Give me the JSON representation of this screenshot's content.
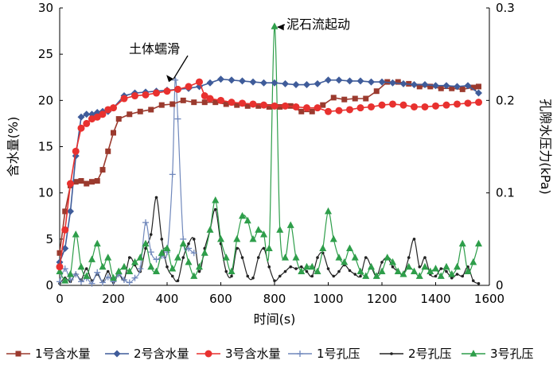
{
  "chart_data": {
    "type": "line",
    "xlabel": "时间(s)",
    "ylabel_left": "含水量(%)",
    "ylabel_right": "孔隙水压力(kPa)",
    "xlim": [
      0,
      1600
    ],
    "ylim_left": [
      0,
      30
    ],
    "ylim_right": [
      0,
      0.3
    ],
    "xticks": [
      0,
      200,
      400,
      600,
      800,
      1000,
      1200,
      1400,
      1600
    ],
    "yticks_left": [
      0,
      5,
      10,
      15,
      20,
      25,
      30
    ],
    "yticks_right": [
      0,
      0.1,
      0.2,
      0.3
    ],
    "ytick_labels_right": [
      "0",
      "0.1",
      "0.2",
      "0.3"
    ],
    "annotations": [
      {
        "text": "土体蠕滑",
        "x": 430,
        "y": 22.5
      },
      {
        "text": "泥石流起动",
        "x": 805,
        "y": 28
      }
    ],
    "legend_position": "bottom",
    "series": [
      {
        "name": "1号含水量",
        "axis": "left",
        "color": "#9b3a2e",
        "marker": "square",
        "x": [
          0,
          20,
          40,
          60,
          80,
          100,
          120,
          140,
          160,
          180,
          200,
          220,
          260,
          300,
          340,
          380,
          420,
          460,
          500,
          540,
          580,
          620,
          660,
          700,
          740,
          780,
          820,
          860,
          900,
          940,
          980,
          1020,
          1060,
          1100,
          1140,
          1180,
          1220,
          1260,
          1300,
          1340,
          1380,
          1420,
          1460,
          1500,
          1540,
          1560
        ],
        "y": [
          3.5,
          8,
          10.8,
          11.2,
          11.3,
          11.0,
          11.2,
          11.3,
          12.5,
          14.5,
          16.5,
          18,
          18.5,
          18.8,
          19,
          19.5,
          19.6,
          20,
          19.8,
          19.8,
          19.8,
          19.6,
          19.5,
          19.4,
          19.4,
          19.3,
          19.3,
          19.4,
          18.8,
          18.8,
          19.5,
          20.3,
          20.1,
          20.2,
          20.2,
          21.0,
          22.0,
          22.0,
          21.8,
          21.5,
          21.5,
          21.3,
          21.3,
          21.2,
          21.4,
          21.5
        ]
      },
      {
        "name": "2号含水量",
        "axis": "left",
        "color": "#3f5c9a",
        "marker": "diamond",
        "x": [
          0,
          20,
          40,
          60,
          80,
          100,
          120,
          140,
          160,
          180,
          200,
          240,
          280,
          320,
          360,
          400,
          440,
          480,
          520,
          560,
          600,
          640,
          680,
          720,
          760,
          800,
          840,
          880,
          920,
          960,
          1000,
          1040,
          1080,
          1120,
          1160,
          1200,
          1240,
          1280,
          1320,
          1360,
          1400,
          1440,
          1480,
          1520,
          1560
        ],
        "y": [
          2.5,
          4,
          8,
          14,
          18.2,
          18.5,
          18.5,
          18.7,
          18.8,
          18.8,
          19.2,
          20.5,
          20.8,
          20.9,
          21.0,
          21.1,
          21.2,
          21.3,
          21.5,
          21.9,
          22.3,
          22.2,
          22.1,
          22,
          21.9,
          21.9,
          21.8,
          21.7,
          21.7,
          21.8,
          22.2,
          22.2,
          22.1,
          22.1,
          22.0,
          22.0,
          21.9,
          21.8,
          21.7,
          21.7,
          21.6,
          21.6,
          21.5,
          21.6,
          20.8
        ]
      },
      {
        "name": "3号含水量",
        "axis": "left",
        "color": "#e8312f",
        "marker": "circle",
        "x": [
          0,
          20,
          40,
          60,
          80,
          100,
          120,
          140,
          160,
          180,
          200,
          240,
          280,
          320,
          360,
          400,
          440,
          480,
          520,
          540,
          560,
          600,
          640,
          680,
          720,
          760,
          800,
          840,
          880,
          920,
          960,
          1000,
          1040,
          1080,
          1120,
          1160,
          1200,
          1240,
          1280,
          1320,
          1360,
          1400,
          1440,
          1480,
          1520,
          1560
        ],
        "y": [
          2,
          6,
          11,
          14.5,
          17,
          17.5,
          18,
          18.2,
          18.5,
          19,
          19.2,
          20.2,
          20.5,
          20.6,
          20.8,
          21.0,
          21.2,
          21.5,
          22,
          20.5,
          20.2,
          20.0,
          19.8,
          19.7,
          19.6,
          19.5,
          19.4,
          19.4,
          19.3,
          19.2,
          19.2,
          18.8,
          18.9,
          19.0,
          19.2,
          19.3,
          19.5,
          19.6,
          19.5,
          19.3,
          19.3,
          19.4,
          19.5,
          19.6,
          19.7,
          19.8
        ]
      },
      {
        "name": "1号孔压",
        "axis": "right",
        "color": "#7088bc",
        "marker": "plus",
        "x": [
          0,
          20,
          40,
          60,
          80,
          100,
          120,
          140,
          160,
          180,
          200,
          220,
          240,
          260,
          280,
          300,
          320,
          340,
          360,
          380,
          400,
          420,
          430,
          440,
          460,
          480,
          500
        ],
        "y": [
          0.004,
          0.018,
          0.006,
          0.012,
          0.004,
          0.008,
          0.002,
          0.014,
          0.003,
          0.009,
          0.004,
          0.012,
          0.006,
          0.003,
          0.008,
          0.018,
          0.068,
          0.036,
          0.028,
          0.032,
          0.036,
          0.12,
          0.222,
          0.18,
          0.05,
          0.04,
          0.035
        ]
      },
      {
        "name": "2号孔压",
        "axis": "right",
        "color": "#222222",
        "marker": "dot",
        "x": [
          0,
          20,
          40,
          60,
          80,
          100,
          120,
          140,
          160,
          180,
          200,
          220,
          240,
          260,
          280,
          300,
          320,
          340,
          360,
          380,
          400,
          420,
          440,
          460,
          480,
          500,
          520,
          540,
          560,
          580,
          600,
          620,
          640,
          660,
          680,
          700,
          720,
          740,
          760,
          780,
          800,
          820,
          840,
          860,
          880,
          900,
          920,
          940,
          960,
          980,
          1000,
          1020,
          1040,
          1060,
          1080,
          1100,
          1120,
          1140,
          1160,
          1180,
          1200,
          1220,
          1240,
          1260,
          1280,
          1300,
          1320,
          1340,
          1360,
          1380,
          1400,
          1420,
          1440,
          1460,
          1480,
          1500,
          1520,
          1540,
          1560
        ],
        "y": [
          0.002,
          0.008,
          0.004,
          0.012,
          0.006,
          0.018,
          0.005,
          0.012,
          0.004,
          0.015,
          0.003,
          0.012,
          0.006,
          0.03,
          0.022,
          0.015,
          0.04,
          0.055,
          0.095,
          0.05,
          0.02,
          0.01,
          0.005,
          0.03,
          0.045,
          0.05,
          0.015,
          0.04,
          0.06,
          0.082,
          0.045,
          0.015,
          0.01,
          0.04,
          0.03,
          0.01,
          0.008,
          0.03,
          0.04,
          0.02,
          0.005,
          0.01,
          0.015,
          0.02,
          0.018,
          0.02,
          0.015,
          0.01,
          0.03,
          0.035,
          0.018,
          0.01,
          0.015,
          0.022,
          0.016,
          0.012,
          0.01,
          0.03,
          0.02,
          0.01,
          0.025,
          0.03,
          0.02,
          0.015,
          0.012,
          0.03,
          0.05,
          0.02,
          0.03,
          0.012,
          0.01,
          0.018,
          0.015,
          0.008,
          0.012,
          0.01,
          0.02,
          0.005,
          0.002
        ]
      },
      {
        "name": "3号孔压",
        "axis": "right",
        "color": "#2e9e4a",
        "marker": "triangle",
        "x": [
          0,
          20,
          40,
          60,
          80,
          100,
          120,
          140,
          160,
          180,
          200,
          220,
          240,
          260,
          280,
          300,
          320,
          340,
          360,
          380,
          400,
          420,
          440,
          460,
          480,
          500,
          520,
          540,
          560,
          580,
          600,
          620,
          640,
          660,
          680,
          700,
          720,
          740,
          760,
          780,
          800,
          820,
          840,
          860,
          880,
          900,
          920,
          940,
          960,
          980,
          1000,
          1020,
          1040,
          1060,
          1080,
          1100,
          1120,
          1140,
          1160,
          1180,
          1200,
          1220,
          1240,
          1260,
          1280,
          1300,
          1320,
          1340,
          1360,
          1380,
          1400,
          1420,
          1440,
          1460,
          1480,
          1500,
          1520,
          1540,
          1560
        ],
        "y": [
          0.015,
          0.005,
          0.012,
          0.055,
          0.02,
          0.01,
          0.028,
          0.045,
          0.02,
          0.03,
          0.008,
          0.015,
          0.02,
          0.015,
          0.025,
          0.03,
          0.045,
          0.02,
          0.015,
          0.035,
          0.04,
          0.018,
          0.03,
          0.045,
          0.025,
          0.01,
          0.02,
          0.035,
          0.06,
          0.092,
          0.05,
          0.03,
          0.015,
          0.05,
          0.075,
          0.07,
          0.05,
          0.06,
          0.055,
          0.04,
          0.28,
          0.06,
          0.03,
          0.065,
          0.03,
          0.015,
          0.02,
          0.02,
          0.015,
          0.04,
          0.08,
          0.05,
          0.03,
          0.025,
          0.04,
          0.03,
          0.015,
          0.01,
          0.02,
          0.01,
          0.015,
          0.03,
          0.025,
          0.015,
          0.012,
          0.02,
          0.015,
          0.01,
          0.02,
          0.015,
          0.018,
          0.01,
          0.02,
          0.012,
          0.02,
          0.045,
          0.015,
          0.025,
          0.045
        ]
      }
    ]
  }
}
